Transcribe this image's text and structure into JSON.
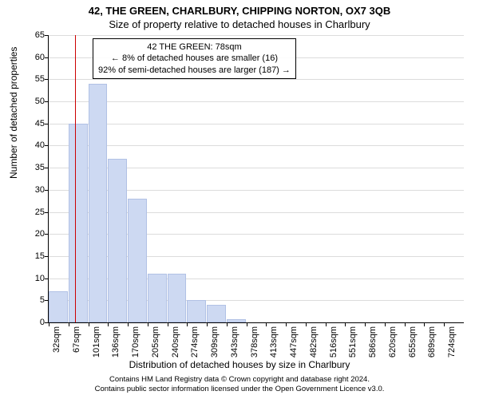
{
  "title_main": "42, THE GREEN, CHARLBURY, CHIPPING NORTON, OX7 3QB",
  "title_sub": "Size of property relative to detached houses in Charlbury",
  "ylabel": "Number of detached properties",
  "xlabel": "Distribution of detached houses by size in Charlbury",
  "chart": {
    "type": "histogram",
    "ylim": [
      0,
      65
    ],
    "ytick_step": 5,
    "x_start": 32,
    "x_step": 34.6,
    "x_count": 21,
    "x_unit": "sqm",
    "grid_color": "#dcdcdc",
    "bar_fill": "#cdd9f2",
    "bar_stroke": "#b1c1e5",
    "values": [
      7,
      45,
      54,
      37,
      28,
      11,
      11,
      5,
      4,
      0.7,
      0,
      0,
      0,
      0,
      0,
      0,
      0,
      0,
      0,
      0
    ],
    "refline_x": 78,
    "refline_color": "#cc0000"
  },
  "annotation": {
    "line1": "42 THE GREEN: 78sqm",
    "line2": "← 8% of detached houses are smaller (16)",
    "line3": "92% of semi-detached houses are larger (187) →"
  },
  "footer": {
    "line1": "Contains HM Land Registry data © Crown copyright and database right 2024.",
    "line2": "Contains public sector information licensed under the Open Government Licence v3.0."
  }
}
